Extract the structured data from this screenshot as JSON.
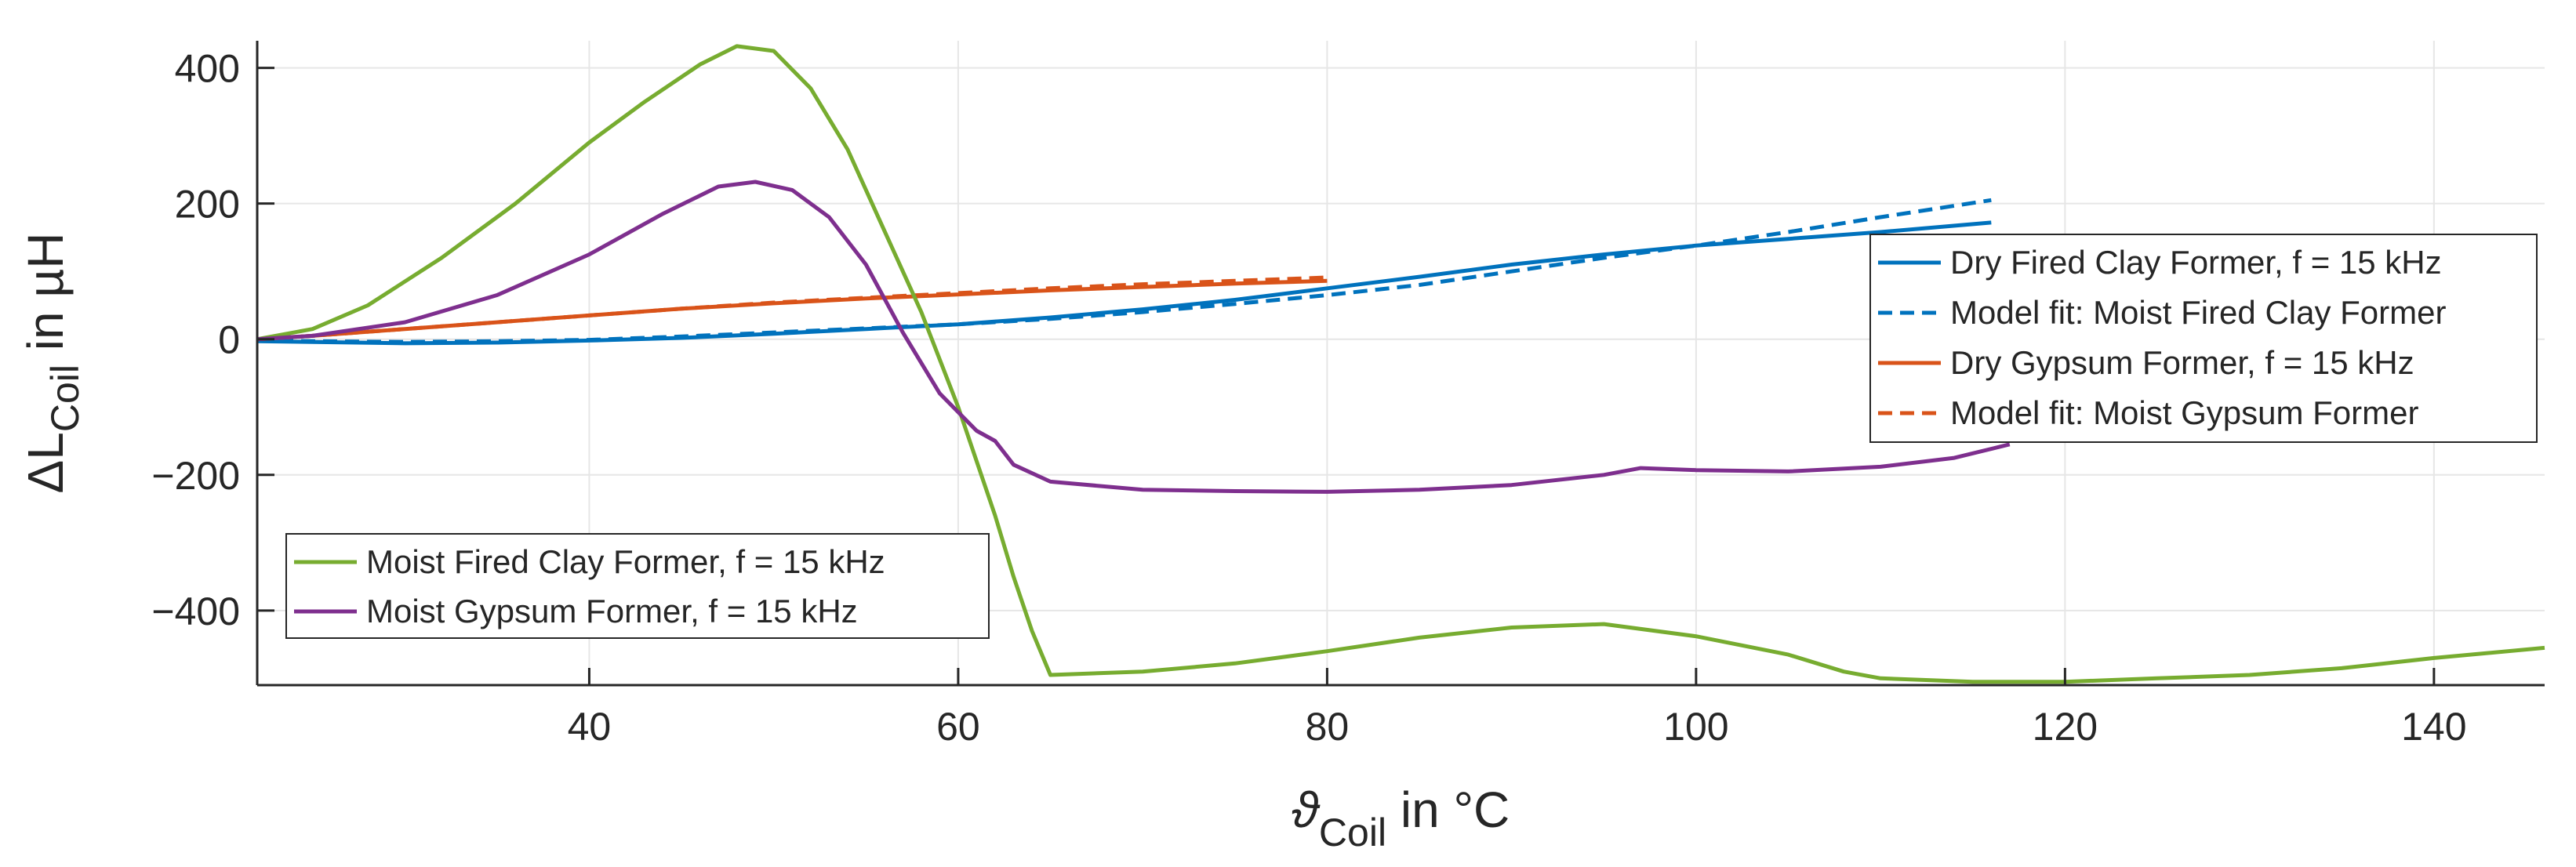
{
  "chart_data": {
    "type": "line",
    "title": "",
    "xlabel_symbol": "ϑ",
    "xlabel_sub": "Coil",
    "xlabel_suffix": " in °C",
    "ylabel_prefix": "ΔL",
    "ylabel_sub": "Coil",
    "ylabel_suffix": " in µH",
    "xlim": [
      22,
      146
    ],
    "ylim": [
      -510,
      440
    ],
    "xticks": [
      {
        "value": 40,
        "label": "40"
      },
      {
        "value": 60,
        "label": "60"
      },
      {
        "value": 80,
        "label": "80"
      },
      {
        "value": 100,
        "label": "100"
      },
      {
        "value": 120,
        "label": "120"
      },
      {
        "value": 140,
        "label": "140"
      }
    ],
    "yticks": [
      {
        "value": 400,
        "label": "400"
      },
      {
        "value": 200,
        "label": "200"
      },
      {
        "value": 0,
        "label": "0"
      },
      {
        "value": -200,
        "label": "−200"
      },
      {
        "value": -400,
        "label": "−400"
      }
    ],
    "grid": true,
    "series": [
      {
        "name": "Dry Fired Clay Former, f = 15 kHz",
        "color": "#0072BD",
        "dash": "solid",
        "legend": "top-right",
        "x": [
          22,
          25,
          30,
          35,
          40,
          45,
          50,
          55,
          60,
          65,
          70,
          75,
          80,
          85,
          90,
          95,
          100,
          105,
          110,
          116
        ],
        "y": [
          -3,
          -4,
          -6,
          -5,
          -2,
          2,
          8,
          15,
          22,
          32,
          44,
          58,
          75,
          92,
          110,
          125,
          138,
          148,
          158,
          172
        ]
      },
      {
        "name": "Model fit: Moist Fired Clay Former",
        "color": "#0072BD",
        "dash": "dashed",
        "legend": "top-right",
        "x": [
          22,
          25,
          30,
          35,
          40,
          45,
          50,
          55,
          60,
          65,
          70,
          75,
          80,
          85,
          90,
          95,
          100,
          105,
          110,
          116
        ],
        "y": [
          -2,
          -3,
          -4,
          -3,
          -1,
          4,
          10,
          16,
          22,
          30,
          40,
          52,
          65,
          80,
          100,
          120,
          138,
          158,
          180,
          205
        ]
      },
      {
        "name": "Dry Gypsum Former, f = 15 kHz",
        "color": "#D95319",
        "dash": "solid",
        "legend": "top-right",
        "x": [
          22,
          25,
          30,
          35,
          40,
          45,
          50,
          55,
          60,
          65,
          70,
          75,
          80
        ],
        "y": [
          0,
          5,
          15,
          25,
          35,
          45,
          53,
          60,
          66,
          72,
          77,
          82,
          86
        ]
      },
      {
        "name": "Model fit: Moist Gypsum Former",
        "color": "#D95319",
        "dash": "dashed",
        "legend": "top-right",
        "x": [
          22,
          25,
          30,
          35,
          40,
          45,
          50,
          55,
          60,
          65,
          70,
          75,
          80
        ],
        "y": [
          0,
          5,
          15,
          25,
          35,
          45,
          54,
          61,
          68,
          75,
          81,
          86,
          91
        ]
      },
      {
        "name": "Moist Fired Clay Former, f = 15 kHz",
        "color": "#77AC30",
        "dash": "solid",
        "legend": "bottom-left",
        "x": [
          22,
          25,
          28,
          32,
          36,
          40,
          43,
          46,
          48,
          50,
          52,
          54,
          56,
          58,
          60,
          62,
          63,
          64,
          65,
          70,
          75,
          80,
          85,
          90,
          95,
          100,
          105,
          108,
          110,
          115,
          120,
          125,
          130,
          135,
          140,
          146
        ],
        "y": [
          0,
          15,
          50,
          120,
          200,
          290,
          350,
          405,
          432,
          425,
          370,
          280,
          160,
          40,
          -100,
          -260,
          -350,
          -430,
          -495,
          -490,
          -478,
          -460,
          -440,
          -425,
          -420,
          -438,
          -465,
          -490,
          -500,
          -505,
          -505,
          -500,
          -495,
          -485,
          -470,
          -455
        ]
      },
      {
        "name": "Moist Gypsum Former, f = 15 kHz",
        "color": "#7E2F8E",
        "dash": "solid",
        "legend": "bottom-left",
        "x": [
          22,
          25,
          30,
          35,
          40,
          44,
          47,
          49,
          51,
          53,
          55,
          57,
          59,
          61,
          62,
          63,
          65,
          70,
          75,
          80,
          85,
          90,
          95,
          97,
          100,
          105,
          110,
          114,
          117
        ],
        "y": [
          0,
          5,
          25,
          65,
          125,
          185,
          225,
          232,
          220,
          180,
          110,
          10,
          -80,
          -135,
          -150,
          -185,
          -210,
          -222,
          -224,
          -225,
          -222,
          -215,
          -200,
          -190,
          -193,
          -195,
          -188,
          -175,
          -155
        ]
      }
    ]
  }
}
